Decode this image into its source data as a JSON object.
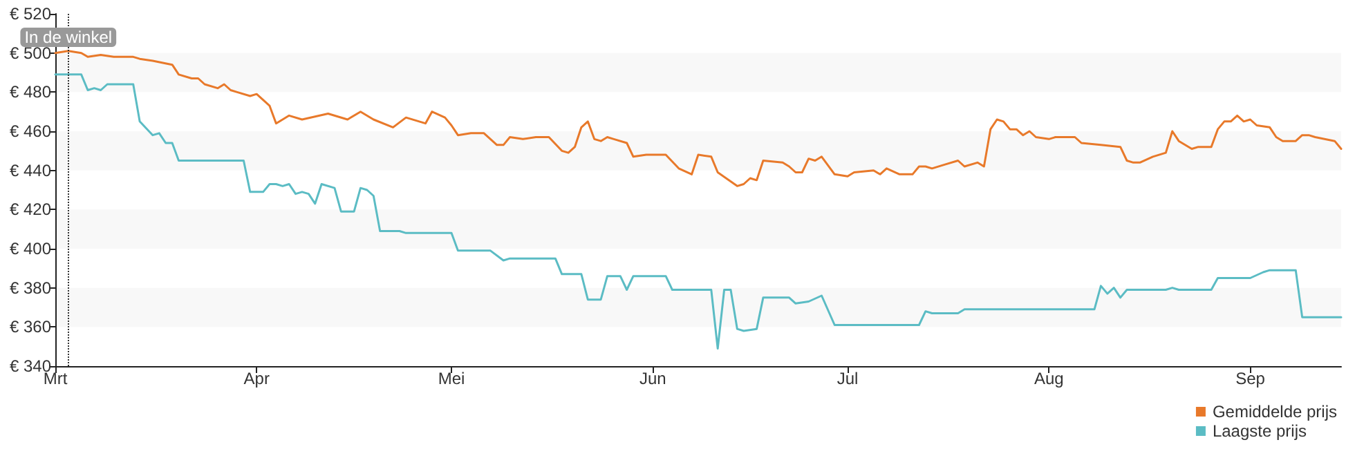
{
  "chart_data": {
    "type": "line",
    "xlim": [
      "--03-01",
      "--09-15"
    ],
    "xticks": [
      {
        "value": "--03-01",
        "label": "Mrt"
      },
      {
        "value": "--04-01",
        "label": "Apr"
      },
      {
        "value": "--05-01",
        "label": "Mei"
      },
      {
        "value": "--06-01",
        "label": "Jun"
      },
      {
        "value": "--07-01",
        "label": "Jul"
      },
      {
        "value": "--08-01",
        "label": "Aug"
      },
      {
        "value": "--09-01",
        "label": "Sep"
      }
    ],
    "ylim": [
      340,
      520
    ],
    "yticks": [
      {
        "value": 340,
        "label": "€ 340"
      },
      {
        "value": 360,
        "label": "€ 360"
      },
      {
        "value": 380,
        "label": "€ 380"
      },
      {
        "value": 400,
        "label": "€ 400"
      },
      {
        "value": 420,
        "label": "€ 420"
      },
      {
        "value": 440,
        "label": "€ 440"
      },
      {
        "value": 460,
        "label": "€ 460"
      },
      {
        "value": 480,
        "label": "€ 480"
      },
      {
        "value": 500,
        "label": "€ 500"
      },
      {
        "value": 520,
        "label": "€ 520"
      }
    ],
    "legend": "bottom right",
    "marker": "none",
    "line_style": "solid",
    "ref_lines": [
      {
        "axis": "x",
        "value": "--03-03",
        "label": "In de winkel",
        "color": "#333333",
        "line_style": "dotted"
      }
    ],
    "series": [
      {
        "name": "Gemiddelde prijs",
        "color": "#e8792a",
        "x": [
          "--03-01",
          "--03-03",
          "--03-05",
          "--03-06",
          "--03-08",
          "--03-10",
          "--03-13",
          "--03-14",
          "--03-16",
          "--03-19",
          "--03-20",
          "--03-22",
          "--03-23",
          "--03-24",
          "--03-26",
          "--03-27",
          "--03-28",
          "--03-29",
          "--03-31",
          "--04-01",
          "--04-03",
          "--04-04",
          "--04-06",
          "--04-08",
          "--04-12",
          "--04-15",
          "--04-17",
          "--04-19",
          "--04-22",
          "--04-24",
          "--04-27",
          "--04-28",
          "--04-30",
          "--05-01",
          "--05-02",
          "--05-04",
          "--05-06",
          "--05-08",
          "--05-09",
          "--05-10",
          "--05-12",
          "--05-14",
          "--05-16",
          "--05-18",
          "--05-19",
          "--05-20",
          "--05-21",
          "--05-22",
          "--05-23",
          "--05-24",
          "--05-25",
          "--05-26",
          "--05-28",
          "--05-29",
          "--05-31",
          "--06-03",
          "--06-05",
          "--06-07",
          "--06-08",
          "--06-10",
          "--06-11",
          "--06-14",
          "--06-15",
          "--06-16",
          "--06-17",
          "--06-18",
          "--06-21",
          "--06-22",
          "--06-23",
          "--06-24",
          "--06-25",
          "--06-26",
          "--06-27",
          "--06-29",
          "--07-01",
          "--07-02",
          "--07-05",
          "--07-06",
          "--07-07",
          "--07-09",
          "--07-11",
          "--07-12",
          "--07-13",
          "--07-14",
          "--07-16",
          "--07-18",
          "--07-19",
          "--07-21",
          "--07-22",
          "--07-23",
          "--07-24",
          "--07-25",
          "--07-26",
          "--07-27",
          "--07-28",
          "--07-29",
          "--07-30",
          "--08-01",
          "--08-02",
          "--08-05",
          "--08-06",
          "--08-09",
          "--08-12",
          "--08-13",
          "--08-14",
          "--08-15",
          "--08-17",
          "--08-19",
          "--08-20",
          "--08-21",
          "--08-23",
          "--08-24",
          "--08-26",
          "--08-27",
          "--08-28",
          "--08-29",
          "--08-30",
          "--08-31",
          "--09-01",
          "--09-02",
          "--09-04",
          "--09-05",
          "--09-06",
          "--09-08",
          "--09-09",
          "--09-10",
          "--09-11",
          "--09-14",
          "--09-15"
        ],
        "values": [
          500,
          501,
          500,
          498,
          499,
          498,
          498,
          497,
          496,
          494,
          489,
          487,
          487,
          484,
          482,
          484,
          481,
          480,
          478,
          479,
          473,
          464,
          468,
          466,
          469,
          466,
          470,
          466,
          462,
          467,
          464,
          470,
          467,
          463,
          458,
          459,
          459,
          453,
          453,
          457,
          456,
          457,
          457,
          450,
          449,
          452,
          462,
          465,
          456,
          455,
          457,
          456,
          454,
          447,
          448,
          448,
          441,
          438,
          448,
          447,
          439,
          432,
          433,
          436,
          435,
          445,
          444,
          442,
          439,
          439,
          446,
          445,
          447,
          438,
          437,
          439,
          440,
          438,
          441,
          438,
          438,
          442,
          442,
          441,
          443,
          445,
          442,
          444,
          442,
          461,
          466,
          465,
          461,
          461,
          458,
          460,
          457,
          456,
          457,
          457,
          454,
          453,
          452,
          445,
          444,
          444,
          447,
          449,
          460,
          455,
          451,
          452,
          452,
          461,
          465,
          465,
          468,
          465,
          466,
          463,
          462,
          457,
          455,
          455,
          458,
          458,
          457,
          455,
          451
        ]
      },
      {
        "name": "Laagste prijs",
        "color": "#5bbcc4",
        "x": [
          "--03-01",
          "--03-05",
          "--03-06",
          "--03-07",
          "--03-08",
          "--03-09",
          "--03-13",
          "--03-14",
          "--03-16",
          "--03-17",
          "--03-18",
          "--03-19",
          "--03-20",
          "--03-30",
          "--03-31",
          "--04-02",
          "--04-03",
          "--04-04",
          "--04-05",
          "--04-06",
          "--04-07",
          "--04-08",
          "--04-09",
          "--04-10",
          "--04-11",
          "--04-13",
          "--04-14",
          "--04-16",
          "--04-17",
          "--04-18",
          "--04-19",
          "--04-20",
          "--04-23",
          "--04-24",
          "--05-01",
          "--05-02",
          "--05-07",
          "--05-09",
          "--05-10",
          "--05-17",
          "--05-18",
          "--05-21",
          "--05-22",
          "--05-24",
          "--05-25",
          "--05-27",
          "--05-28",
          "--05-29",
          "--06-03",
          "--06-04",
          "--06-10",
          "--06-11",
          "--06-12",
          "--06-13",
          "--06-14",
          "--06-15",
          "--06-17",
          "--06-18",
          "--06-22",
          "--06-23",
          "--06-25",
          "--06-27",
          "--06-29",
          "--07-12",
          "--07-13",
          "--07-14",
          "--07-18",
          "--07-19",
          "--08-08",
          "--08-09",
          "--08-10",
          "--08-11",
          "--08-12",
          "--08-13",
          "--08-19",
          "--08-20",
          "--08-21",
          "--08-26",
          "--08-27",
          "--09-01",
          "--09-03",
          "--09-04",
          "--09-08",
          "--09-09",
          "--09-15"
        ],
        "values": [
          489,
          489,
          481,
          482,
          481,
          484,
          484,
          465,
          458,
          459,
          454,
          454,
          445,
          445,
          429,
          429,
          433,
          433,
          432,
          433,
          428,
          429,
          428,
          423,
          433,
          431,
          419,
          419,
          431,
          430,
          427,
          409,
          409,
          408,
          408,
          399,
          399,
          394,
          395,
          395,
          387,
          387,
          374,
          374,
          386,
          386,
          379,
          386,
          386,
          379,
          379,
          349,
          379,
          379,
          359,
          358,
          359,
          375,
          375,
          372,
          373,
          376,
          361,
          361,
          368,
          367,
          367,
          369,
          369,
          381,
          377,
          380,
          375,
          379,
          379,
          380,
          379,
          379,
          385,
          385,
          388,
          389,
          389,
          365,
          365
        ]
      }
    ]
  }
}
